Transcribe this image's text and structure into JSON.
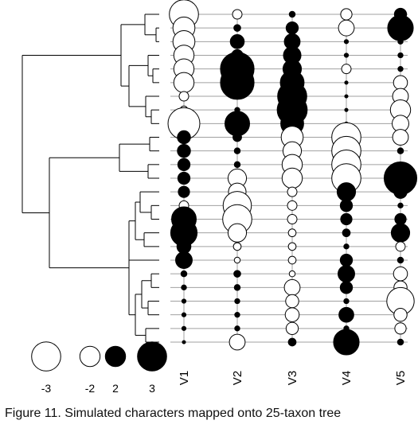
{
  "caption": "Figure 11. Simulated characters mapped onto 25-taxon tree",
  "chart_data": {
    "type": "phylogenetic-bubble-plot",
    "title": "",
    "taxa_count": 25,
    "characters": [
      "V1",
      "V2",
      "V3",
      "V4",
      "V5"
    ],
    "values": [
      [
        -3.0,
        -0.8,
        0.4,
        -1.0,
        1.1
      ],
      [
        -2.2,
        0.5,
        1.1,
        -1.5,
        2.6
      ],
      [
        -2.2,
        1.3,
        1.5,
        0.2,
        0.3
      ],
      [
        -2.0,
        1.0,
        1.7,
        0.2,
        0.3
      ],
      [
        -2.0,
        3.5,
        1.8,
        -0.8,
        0.3
      ],
      [
        -2.0,
        3.5,
        2.4,
        0.1,
        -1.3
      ],
      [
        -0.8,
        0.3,
        3.0,
        0.1,
        -1.5
      ],
      [
        -0.6,
        0.3,
        3.1,
        0.1,
        -2.0
      ],
      [
        -3.3,
        2.5,
        2.3,
        0.1,
        -1.6
      ],
      [
        1.2,
        0.7,
        -2.2,
        -3.0,
        -1.5
      ],
      [
        1.2,
        0.4,
        -1.8,
        -3.0,
        0.4
      ],
      [
        1.1,
        0.4,
        -2.0,
        -3.0,
        0.3
      ],
      [
        1.1,
        -1.8,
        -2.0,
        -3.0,
        3.4
      ],
      [
        1.0,
        -1.7,
        -0.8,
        1.8,
        1.2
      ],
      [
        -0.8,
        -2.9,
        -0.8,
        1.1,
        0.3
      ],
      [
        2.5,
        -3.0,
        -0.8,
        1.0,
        1.0
      ],
      [
        2.7,
        -1.8,
        -0.6,
        0.6,
        1.8
      ],
      [
        1.3,
        -0.6,
        -0.6,
        0.3,
        -0.8
      ],
      [
        1.6,
        -0.4,
        -0.6,
        1.1,
        0.4
      ],
      [
        0.4,
        0.5,
        -0.4,
        1.6,
        -1.3
      ],
      [
        0.3,
        0.4,
        -1.5,
        1.1,
        -1.2
      ],
      [
        0.2,
        0.3,
        -1.2,
        0.3,
        -2.8
      ],
      [
        0.2,
        0.3,
        -1.3,
        1.4,
        -1.2
      ],
      [
        0.2,
        0.3,
        -1.1,
        0.3,
        -1.0
      ],
      [
        0.1,
        -1.5,
        0.6,
        2.6,
        0.4
      ]
    ],
    "legend": {
      "items": [
        {
          "label": "-3",
          "value": -3
        },
        {
          "label": "-2",
          "value": -2
        },
        {
          "label": "2",
          "value": 2
        },
        {
          "label": "3",
          "value": 3
        }
      ],
      "placement": "bottom-left"
    },
    "colors": {
      "positive": "#000000",
      "negative": "#ffffff",
      "stroke": "#000000",
      "line": "#a0a0a0"
    }
  }
}
